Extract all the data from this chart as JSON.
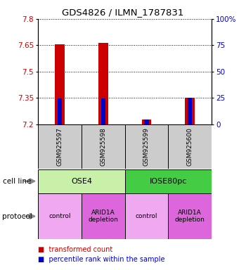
{
  "title": "GDS4826 / ILMN_1787831",
  "samples": [
    "GSM925597",
    "GSM925598",
    "GSM925599",
    "GSM925600"
  ],
  "red_bar_tops": [
    7.655,
    7.665,
    7.225,
    7.35
  ],
  "red_bar_base": 7.2,
  "blue_bar_tops": [
    7.348,
    7.348,
    7.228,
    7.352
  ],
  "blue_bar_base": 7.2,
  "blue_bar_width": 0.1,
  "red_bar_width": 0.22,
  "ylim": [
    7.2,
    7.8
  ],
  "yticks_left": [
    7.2,
    7.35,
    7.5,
    7.65,
    7.8
  ],
  "yticks_right": [
    0,
    25,
    50,
    75,
    100
  ],
  "ytick_labels_right": [
    "0",
    "25",
    "50",
    "75",
    "100%"
  ],
  "cell_line_labels": [
    "OSE4",
    "IOSE80pc"
  ],
  "cell_line_spans": [
    [
      0,
      2
    ],
    [
      2,
      4
    ]
  ],
  "cell_line_colors": [
    "#c8f0a8",
    "#44cc44"
  ],
  "protocol_labels": [
    "control",
    "ARID1A\ndepletion",
    "control",
    "ARID1A\ndepletion"
  ],
  "protocol_row_colors": [
    "#f0a8f0",
    "#dd66dd",
    "#f0a8f0",
    "#dd66dd"
  ],
  "legend_red": "transformed count",
  "legend_blue": "percentile rank within the sample",
  "bar_color_red": "#cc0000",
  "bar_color_blue": "#0000cc",
  "left_label_color": "#cc0000",
  "right_label_color": "#0000cc",
  "sample_box_color": "#cccccc",
  "figsize": [
    3.5,
    3.84
  ],
  "dpi": 100
}
